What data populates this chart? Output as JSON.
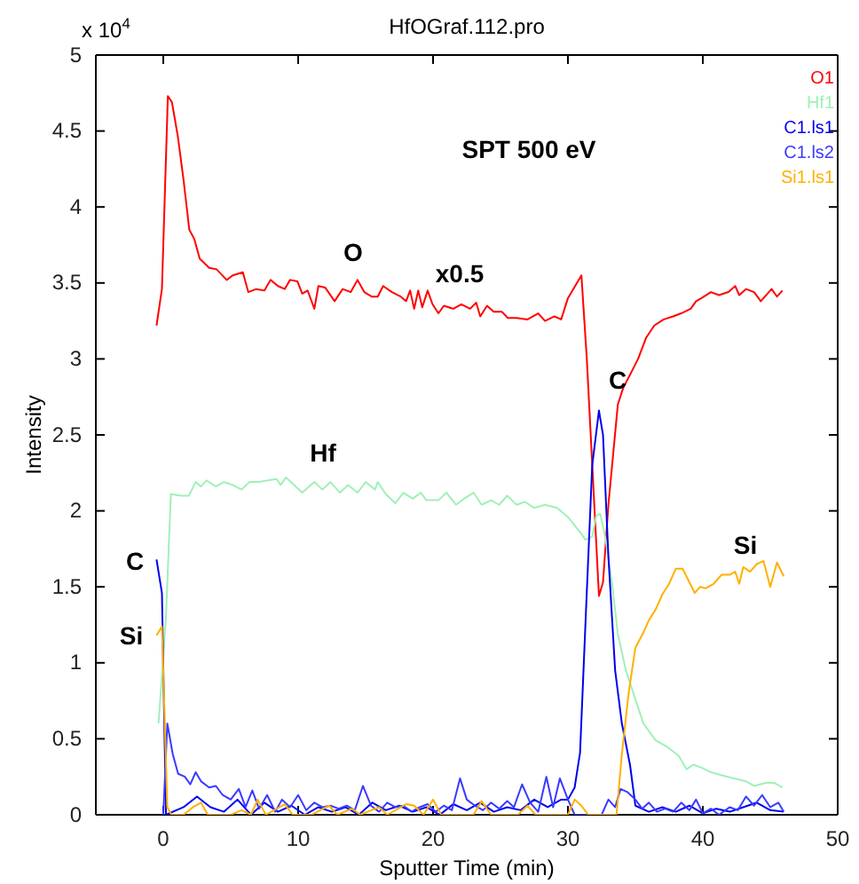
{
  "chart_data": {
    "type": "line",
    "title": "HfOGraf.112.pro",
    "xlabel": "Sputter Time (min)",
    "ylabel": "Intensity",
    "xlim": [
      -5,
      50
    ],
    "xticks": [
      0,
      10,
      20,
      30,
      40,
      50
    ],
    "ylim": [
      0,
      5
    ],
    "yticks": [
      0,
      0.5,
      1,
      1.5,
      2,
      2.5,
      3,
      3.5,
      4,
      4.5,
      5
    ],
    "grid": false,
    "legend": "top right",
    "marker": "none",
    "line_style": "solid",
    "annotations": [
      "x 10$^{4}$",
      "SPT 500 eV",
      "O",
      "x0.5",
      "Hf",
      "C",
      "C",
      "Si",
      "Si"
    ],
    "series": [
      {
        "name": "O1",
        "color": "#ff0000",
        "x": [
          -0.5,
          -0.1,
          0.34,
          0.64,
          1.07,
          1.5,
          1.93,
          2.3,
          2.7,
          3.4,
          3.95,
          4.7,
          5.15,
          5.9,
          6.3,
          6.9,
          7.5,
          7.95,
          8.5,
          9.0,
          9.4,
          9.95,
          10.3,
          10.7,
          11.2,
          11.5,
          12.0,
          12.7,
          13.3,
          13.9,
          14.4,
          14.9,
          15.45,
          15.9,
          16.3,
          16.95,
          17.6,
          18.0,
          18.3,
          18.6,
          18.9,
          19.2,
          19.6,
          19.96,
          20.4,
          20.8,
          21.5,
          22.1,
          22.75,
          23.2,
          23.5,
          24.0,
          24.5,
          25.1,
          25.55,
          26.2,
          27.0,
          27.8,
          28.3,
          29.0,
          29.5,
          30.0,
          31.0,
          31.4,
          32.3,
          32.6,
          33.0,
          33.7,
          34.1,
          34.8,
          35.2,
          35.8,
          36.4,
          37.1,
          37.8,
          38.4,
          39.1,
          39.5,
          39.9,
          40.6,
          41.2,
          41.9,
          42.4,
          42.7,
          43.2,
          43.8,
          44.3,
          45.1,
          45.5,
          45.9
        ],
        "values": [
          3.22,
          3.46,
          4.73,
          4.69,
          4.47,
          4.18,
          3.85,
          3.79,
          3.66,
          3.6,
          3.59,
          3.52,
          3.55,
          3.57,
          3.44,
          3.46,
          3.45,
          3.52,
          3.48,
          3.46,
          3.52,
          3.51,
          3.43,
          3.45,
          3.33,
          3.48,
          3.47,
          3.38,
          3.46,
          3.44,
          3.52,
          3.44,
          3.41,
          3.41,
          3.48,
          3.44,
          3.41,
          3.38,
          3.45,
          3.33,
          3.45,
          3.34,
          3.45,
          3.36,
          3.3,
          3.35,
          3.33,
          3.36,
          3.33,
          3.37,
          3.28,
          3.35,
          3.31,
          3.31,
          3.27,
          3.27,
          3.26,
          3.3,
          3.25,
          3.28,
          3.26,
          3.4,
          3.55,
          3.0,
          1.44,
          1.53,
          2.04,
          2.7,
          2.81,
          2.93,
          3.0,
          3.14,
          3.22,
          3.26,
          3.28,
          3.3,
          3.33,
          3.38,
          3.4,
          3.44,
          3.42,
          3.44,
          3.48,
          3.42,
          3.46,
          3.44,
          3.38,
          3.46,
          3.41,
          3.45
        ]
      },
      {
        "name": "Hf1",
        "color": "#a0f0b8",
        "x": [
          -0.35,
          0.2,
          0.56,
          1.3,
          1.9,
          2.4,
          2.8,
          3.2,
          3.9,
          4.5,
          5.15,
          5.8,
          6.4,
          7.1,
          7.7,
          8.4,
          8.7,
          9.1,
          9.7,
          10.3,
          11.2,
          11.8,
          12.4,
          13.1,
          13.7,
          14.4,
          15.0,
          15.7,
          15.9,
          16.5,
          17.2,
          17.8,
          18.5,
          19.1,
          19.5,
          20.4,
          21.0,
          21.7,
          22.3,
          23.0,
          23.6,
          24.3,
          24.9,
          25.5,
          26.2,
          26.8,
          27.5,
          28.3,
          29.2,
          30.0,
          30.9,
          31.3,
          31.8,
          32.1,
          32.4,
          32.8,
          33.3,
          33.7,
          34.3,
          35.0,
          35.6,
          36.5,
          37.3,
          38.2,
          38.8,
          39.3,
          39.9,
          40.6,
          41.4,
          42.3,
          43.2,
          43.8,
          44.7,
          45.3,
          45.9
        ],
        "values": [
          0.6,
          1.3,
          2.11,
          2.1,
          2.1,
          2.19,
          2.16,
          2.2,
          2.16,
          2.19,
          2.17,
          2.14,
          2.19,
          2.19,
          2.2,
          2.21,
          2.17,
          2.22,
          2.17,
          2.12,
          2.19,
          2.14,
          2.19,
          2.12,
          2.17,
          2.12,
          2.19,
          2.14,
          2.19,
          2.11,
          2.05,
          2.12,
          2.08,
          2.12,
          2.07,
          2.07,
          2.12,
          2.04,
          2.08,
          2.12,
          2.04,
          2.07,
          2.04,
          2.1,
          2.04,
          2.06,
          2.02,
          2.04,
          2.02,
          1.96,
          1.86,
          1.81,
          1.83,
          1.97,
          1.98,
          1.81,
          1.5,
          1.19,
          0.95,
          0.76,
          0.6,
          0.49,
          0.45,
          0.39,
          0.3,
          0.33,
          0.31,
          0.28,
          0.26,
          0.24,
          0.22,
          0.19,
          0.21,
          0.21,
          0.18
        ]
      },
      {
        "name": "C1.ls1",
        "color": "#0000ee",
        "x": [
          -0.5,
          -0.1,
          0.2,
          1.5,
          2.5,
          3.5,
          4.5,
          5.5,
          6.5,
          7.5,
          8.5,
          9.5,
          10.5,
          11.5,
          12.5,
          13.5,
          14.5,
          15.5,
          16.5,
          17.5,
          18.5,
          19.5,
          20.5,
          21.5,
          22.5,
          23.5,
          24.5,
          25.5,
          26.5,
          27.5,
          28.5,
          29.5,
          30.0,
          30.5,
          30.9,
          31.3,
          31.8,
          32.3,
          32.6,
          33.0,
          33.5,
          34.0,
          34.6,
          35.0,
          36,
          37,
          38,
          39,
          40,
          41,
          42,
          43,
          44,
          45,
          46
        ],
        "values": [
          1.68,
          1.46,
          0,
          0.05,
          0.12,
          0.05,
          0.02,
          0.1,
          0,
          0.08,
          0.02,
          0.06,
          0,
          0.05,
          0.02,
          0.05,
          0,
          0.08,
          0.03,
          0.06,
          0.02,
          0.05,
          0,
          0.07,
          0.03,
          0.08,
          0.02,
          0.05,
          0.03,
          0.1,
          0.05,
          0.1,
          0.1,
          0.18,
          0.41,
          1.26,
          2.3,
          2.66,
          2.5,
          1.7,
          0.95,
          0.6,
          0.33,
          0.06,
          0.02,
          0.05,
          0.02,
          0.06,
          0.01,
          0.04,
          0.02,
          0.05,
          0.08,
          0.03,
          0.02
        ]
      },
      {
        "name": "C1.ls2",
        "color": "#3a3aff",
        "x": [
          0.0,
          0.3,
          0.7,
          1.1,
          1.6,
          2.0,
          2.4,
          2.8,
          3.4,
          3.9,
          4.4,
          5.0,
          5.6,
          6.1,
          6.6,
          7.1,
          7.7,
          8.3,
          8.8,
          9.4,
          10.0,
          10.6,
          11.2,
          11.8,
          12.4,
          13.0,
          13.6,
          14.2,
          14.8,
          15.4,
          16.0,
          16.6,
          17.2,
          17.8,
          18.4,
          19.0,
          19.6,
          20.2,
          20.8,
          21.4,
          22.0,
          22.5,
          23.1,
          23.7,
          24.3,
          24.9,
          25.5,
          26.0,
          26.6,
          27.2,
          27.8,
          28.4,
          28.9,
          29.4,
          30.0,
          30.5,
          31.5,
          32.5,
          33.0,
          33.5,
          33.9,
          34.4,
          35.0,
          35.5,
          36.0,
          36.6,
          37.2,
          37.8,
          38.4,
          39.0,
          39.5,
          40.0,
          40.6,
          41.2,
          42.0,
          42.6,
          43.2,
          43.8,
          44.4,
          45.0,
          45.6,
          46.0
        ],
        "values": [
          0,
          0.6,
          0.4,
          0.27,
          0.25,
          0.2,
          0.28,
          0.22,
          0.18,
          0.19,
          0.13,
          0.1,
          0.17,
          0.05,
          0.16,
          0.04,
          0.13,
          0.02,
          0.1,
          0.05,
          0.13,
          0.03,
          0.08,
          0.05,
          0.06,
          0.04,
          0.06,
          0.03,
          0.19,
          0.06,
          0.02,
          0.08,
          0.05,
          0.06,
          0.02,
          0.05,
          0.07,
          0.02,
          0.06,
          0.03,
          0.24,
          0.1,
          0.06,
          0.03,
          0.08,
          0.04,
          0.09,
          0.05,
          0.2,
          0.08,
          0.02,
          0.25,
          0.05,
          0.24,
          0.1,
          0,
          0,
          0,
          0.1,
          0.05,
          0.17,
          0.15,
          0.1,
          0.04,
          0.08,
          0.02,
          0.04,
          0.02,
          0.08,
          0.03,
          0.1,
          0.01,
          0.04,
          0,
          0.05,
          0.03,
          0.12,
          0.06,
          0.13,
          0.05,
          0.08,
          0.02
        ]
      },
      {
        "name": "Si1.ls1",
        "color": "#ffb000",
        "x": [
          -0.5,
          -0.1,
          0.3,
          0.6,
          1.5,
          2.2,
          2.8,
          3.3,
          5.0,
          5.8,
          6.5,
          7.0,
          7.6,
          9.0,
          9.6,
          11.0,
          12.3,
          12.9,
          14.0,
          14.6,
          16.0,
          16.6,
          18.0,
          18.6,
          19.3,
          20.0,
          20.6,
          22.0,
          23.0,
          23.6,
          24.3,
          26.3,
          27.0,
          27.6,
          29.0,
          30.0,
          30.5,
          31.0,
          31.5,
          33.6,
          34.0,
          34.5,
          35.0,
          35.6,
          36.0,
          36.5,
          37.0,
          37.5,
          38.0,
          38.5,
          39.0,
          39.4,
          39.8,
          40.2,
          40.8,
          41.4,
          42.0,
          42.4,
          42.7,
          43.0,
          43.5,
          44.0,
          44.5,
          45.0,
          45.5,
          46.0
        ],
        "values": [
          1.18,
          1.24,
          0.05,
          0,
          0,
          0.05,
          0.08,
          0,
          0,
          0.03,
          0,
          0.1,
          0,
          0.07,
          0,
          0,
          0.06,
          0,
          0.04,
          0,
          0.05,
          0,
          0.07,
          0.06,
          0,
          0.1,
          0,
          0,
          0,
          0.09,
          0,
          0,
          0.06,
          0,
          0,
          0,
          0.1,
          0.06,
          0,
          0,
          0.4,
          0.8,
          1.1,
          1.2,
          1.28,
          1.35,
          1.45,
          1.52,
          1.62,
          1.62,
          1.53,
          1.46,
          1.5,
          1.49,
          1.52,
          1.58,
          1.58,
          1.6,
          1.52,
          1.63,
          1.6,
          1.65,
          1.67,
          1.5,
          1.66,
          1.57
        ]
      }
    ]
  }
}
